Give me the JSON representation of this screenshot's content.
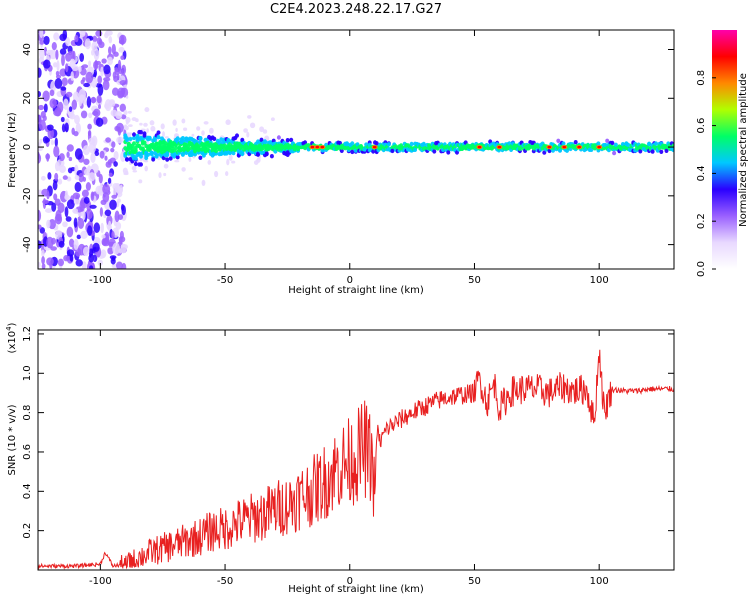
{
  "title": "C2E4.2023.248.22.17.G27",
  "colors": {
    "snr_line": "#e82020",
    "frame": "#000000",
    "colormap": [
      "#ffffff",
      "#e8d8ff",
      "#9a60ff",
      "#2a00ff",
      "#00c8ff",
      "#00ff66",
      "#b0ff00",
      "#ff8800",
      "#ff0000",
      "#ff00aa"
    ]
  },
  "chart_data": [
    {
      "type": "heatmap",
      "title": "C2E4.2023.248.22.17.G27",
      "xlabel": "Height of straight line (km)",
      "ylabel": "Frequency (Hz)",
      "xlim": [
        -125,
        130
      ],
      "ylim": [
        -50,
        48
      ],
      "x_ticks": [
        -100,
        -50,
        0,
        50,
        100
      ],
      "y_ticks": [
        -40,
        -20,
        0,
        20,
        40
      ],
      "colorbar": {
        "label": "Normalized spectral amplitude",
        "range": [
          0.0,
          1.0
        ],
        "ticks": [
          "0.0",
          "0.2",
          "0.4",
          "0.6",
          "0.8"
        ]
      }
    },
    {
      "type": "line",
      "xlabel": "Height of straight line (km)",
      "ylabel": "SNR (10 * v/v)",
      "scale_note": "(x10",
      "scale_exp": "4",
      "scale_close": ")",
      "xlim": [
        -125,
        130
      ],
      "ylim": [
        0.0,
        1.22
      ],
      "x_ticks": [
        -100,
        -50,
        0,
        50,
        100
      ],
      "y_ticks": [
        "0.2",
        "0.4",
        "0.6",
        "0.8",
        "1.0",
        "1.2"
      ],
      "series": [
        {
          "x": [
            -125,
            -110,
            -100,
            -98,
            -95,
            -90,
            -85,
            -80,
            -75,
            -70,
            -65,
            -60,
            -55,
            -50,
            -45,
            -40,
            -35,
            -30,
            -25,
            -20,
            -15,
            -10,
            -5,
            0,
            3,
            6,
            9,
            10,
            11,
            12,
            15,
            20,
            25,
            30,
            35,
            40,
            45,
            50,
            52,
            55,
            58,
            60,
            65,
            70,
            75,
            80,
            85,
            90,
            95,
            98,
            100,
            102,
            105,
            110,
            115,
            120,
            125,
            130
          ],
          "y": [
            0.02,
            0.02,
            0.03,
            0.09,
            0.02,
            0.03,
            0.06,
            0.09,
            0.11,
            0.13,
            0.15,
            0.17,
            0.2,
            0.21,
            0.24,
            0.26,
            0.28,
            0.31,
            0.33,
            0.37,
            0.4,
            0.45,
            0.52,
            0.55,
            0.58,
            0.62,
            0.55,
            0.38,
            0.72,
            0.65,
            0.72,
            0.76,
            0.8,
            0.83,
            0.86,
            0.88,
            0.89,
            0.9,
            0.98,
            0.85,
            0.95,
            0.82,
            0.91,
            0.92,
            0.92,
            0.9,
            0.93,
            0.91,
            0.92,
            0.75,
            1.12,
            0.8,
            0.92,
            0.91,
            0.91,
            0.92,
            0.92,
            0.92
          ]
        }
      ]
    }
  ]
}
